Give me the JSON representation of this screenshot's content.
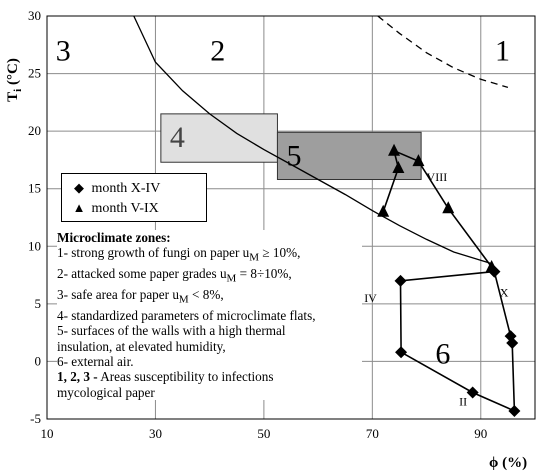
{
  "chart_data": {
    "type": "scatter",
    "xlabel": "ϕ (%)",
    "ylabel": "Ti (°C)",
    "xlim": [
      10,
      100
    ],
    "ylim": [
      -5,
      30
    ],
    "xticks": [
      "10",
      "30",
      "50",
      "70",
      "90"
    ],
    "yticks": [
      "-5",
      "0",
      "5",
      "10",
      "15",
      "20",
      "25",
      "30"
    ],
    "grid": true,
    "series": [
      {
        "name": "month X-IV",
        "marker": "diamond",
        "x": [
          92.5,
          95.5,
          95.8,
          96.2,
          88.5,
          75.3,
          75.2,
          92.5
        ],
        "y": [
          7.8,
          2.2,
          1.6,
          -4.3,
          -2.7,
          0.8,
          7.0,
          7.8
        ]
      },
      {
        "name": "month V-IX",
        "marker": "triangle",
        "x": [
          72.0,
          74.8,
          74.0,
          78.5,
          84.0,
          92.0
        ],
        "y": [
          13.0,
          16.8,
          18.3,
          17.4,
          13.3,
          8.2
        ]
      }
    ],
    "curves": {
      "solid": {
        "x": [
          26,
          30,
          35,
          40,
          45,
          50,
          55,
          60,
          65,
          70,
          75,
          80,
          85,
          92
        ],
        "y": [
          30,
          26,
          23.5,
          21.5,
          19.8,
          18.4,
          17.1,
          15.8,
          14.5,
          13.1,
          11.8,
          10.6,
          9.5,
          8.5
        ]
      },
      "dashed": {
        "x": [
          71,
          75,
          80,
          85,
          90,
          95
        ],
        "y": [
          30,
          28.5,
          26.8,
          25.5,
          24.5,
          23.8
        ]
      }
    },
    "zones_rect": [
      {
        "label": "4",
        "x0": 31,
        "x1": 52.5,
        "y0": 17.3,
        "y1": 21.5,
        "fill": "#e0e0e0"
      },
      {
        "label": "5",
        "x0": 52.5,
        "x1": 79,
        "y0": 15.8,
        "y1": 19.9,
        "fill": "#9e9e9e"
      }
    ],
    "zone_labels": [
      {
        "text": "3",
        "x": 13,
        "y": 27
      },
      {
        "text": "2",
        "x": 41.5,
        "y": 27
      },
      {
        "text": "1",
        "x": 94,
        "y": 27
      },
      {
        "text": "6",
        "x": 83,
        "y": 0.7
      }
    ],
    "month_labels": [
      {
        "text": "VIII",
        "x": 80,
        "y": 16.0
      },
      {
        "text": "X",
        "x": 93.5,
        "y": 6.0
      },
      {
        "text": "IV",
        "x": 68.5,
        "y": 5.5
      },
      {
        "text": "II",
        "x": 86,
        "y": -3.5
      }
    ],
    "legend": {
      "position": "left-middle",
      "entries": [
        "month X-IV",
        "month V-IX"
      ]
    },
    "notes": {
      "title": "Microclimate zones:",
      "lines": [
        "1- strong growth of fungi on paper u",
        "2- attacked some paper grades u",
        "3- safe area for paper u",
        "4- standardized parameters of microclimate flats,",
        "5- surfaces of the walls with a high thermal",
        "insulation, at elevated humidity,",
        "6- external air."
      ],
      "line1_tail": " ≥ 10%,",
      "line2_tail": " = 8÷10%,",
      "line3_tail": " < 8%,",
      "sub": "M",
      "footer_bold": "1, 2, 3 -",
      "footer_1": " Areas susceptibility to infections",
      "footer_2": "mycological paper"
    }
  }
}
